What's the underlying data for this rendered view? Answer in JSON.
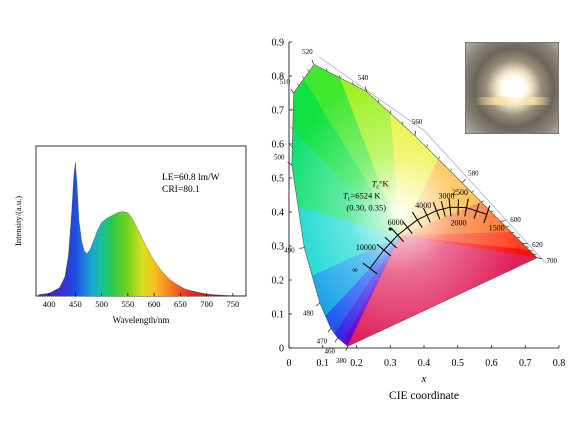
{
  "chart_data": [
    {
      "type": "area",
      "xlabel": "Wavelength/nm",
      "ylabel": "Intensity/(a.u.)",
      "xlim": [
        375,
        775
      ],
      "ylim": [
        0,
        1.1
      ],
      "xticks": [
        400,
        450,
        500,
        550,
        600,
        650,
        700,
        750
      ],
      "annotations": [
        "LE=60.8 lm/W",
        "CRI=80.1"
      ],
      "grid": false,
      "series": [
        {
          "x": [
            380,
            400,
            420,
            430,
            437,
            443,
            447,
            450,
            453,
            457,
            462,
            467,
            472,
            478,
            485,
            492,
            500,
            510,
            520,
            530,
            540,
            550,
            558,
            565,
            575,
            585,
            600,
            615,
            630,
            645,
            660,
            680,
            700,
            720,
            740,
            760,
            775
          ],
          "values": [
            0.01,
            0.02,
            0.06,
            0.14,
            0.3,
            0.62,
            0.88,
            0.98,
            0.82,
            0.55,
            0.4,
            0.33,
            0.31,
            0.34,
            0.41,
            0.48,
            0.54,
            0.57,
            0.59,
            0.61,
            0.62,
            0.61,
            0.57,
            0.52,
            0.44,
            0.36,
            0.26,
            0.18,
            0.12,
            0.08,
            0.05,
            0.03,
            0.015,
            0.008,
            0.004,
            0.002,
            0.0
          ]
        }
      ]
    },
    {
      "type": "scatter",
      "xlabel": "x",
      "caption": "CIE coordinate",
      "xlim": [
        0,
        0.8
      ],
      "ylim": [
        0,
        0.9
      ],
      "xticks": [
        0,
        0.1,
        0.2,
        0.3,
        0.4,
        0.5,
        0.6,
        0.7,
        0.8
      ],
      "yticks": [
        0,
        0.1,
        0.2,
        0.3,
        0.4,
        0.5,
        0.6,
        0.7,
        0.8,
        0.9
      ],
      "locus": [
        {
          "nm": "380",
          "x": 0.1741,
          "y": 0.005
        },
        {
          "nm": "460",
          "x": 0.144,
          "y": 0.0297
        },
        {
          "nm": "470",
          "x": 0.1241,
          "y": 0.0578
        },
        {
          "nm": "480",
          "x": 0.0913,
          "y": 0.1327
        },
        {
          "nm": "490",
          "x": 0.0454,
          "y": 0.295
        },
        {
          "nm": "500",
          "x": 0.0082,
          "y": 0.5384
        },
        {
          "nm": "510",
          "x": 0.0139,
          "y": 0.7502
        },
        {
          "nm": "520",
          "x": 0.0743,
          "y": 0.8338
        },
        {
          "nm": "540",
          "x": 0.2296,
          "y": 0.7543
        },
        {
          "nm": "560",
          "x": 0.3731,
          "y": 0.6245
        },
        {
          "nm": "580",
          "x": 0.5125,
          "y": 0.4866
        },
        {
          "nm": "600",
          "x": 0.627,
          "y": 0.3725
        },
        {
          "nm": "620",
          "x": 0.6915,
          "y": 0.3083
        },
        {
          "nm": "700",
          "x": 0.7347,
          "y": 0.2653
        }
      ],
      "planckian_locus": [
        {
          "label": "∞",
          "x": 0.24,
          "y": 0.234
        },
        {
          "label": "10000",
          "x": 0.281,
          "y": 0.288
        },
        {
          "label": "6000",
          "x": 0.322,
          "y": 0.332
        },
        {
          "label": "4000",
          "x": 0.38,
          "y": 0.377
        },
        {
          "label": "3000",
          "x": 0.437,
          "y": 0.404
        },
        {
          "label": "2500",
          "x": 0.477,
          "y": 0.414
        },
        {
          "label": "2000",
          "x": 0.526,
          "y": 0.413
        },
        {
          "label": "1500",
          "x": 0.586,
          "y": 0.393
        }
      ],
      "point": {
        "x": 0.3,
        "y": 0.35
      },
      "annotations": [
        "T",
        "c",
        "=6524 K",
        "(0.30, 0.35)",
        "T",
        "c",
        "°K"
      ]
    }
  ]
}
